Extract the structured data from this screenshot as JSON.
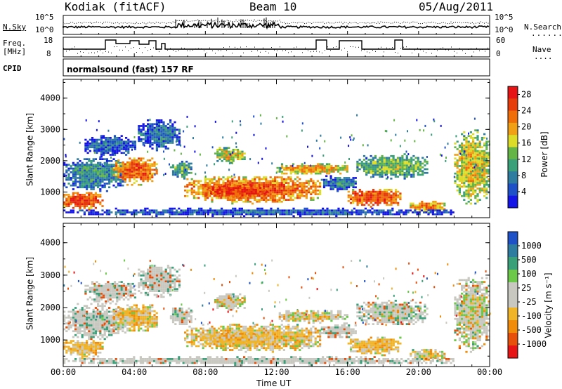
{
  "header": {
    "station": "Kodiak (fitACF)",
    "beam": "Beam 10",
    "date": "05/Aug/2011"
  },
  "labels": {
    "nsky": "N.Sky",
    "nsearch": "N.Search",
    "freq": "Freq.",
    "freq_unit": "[MHz]",
    "nave": "Nave",
    "cpid": "CPID",
    "cpid_value": "normalsound (fast) 157 RF",
    "noise_ticks_left": [
      "10^5",
      "10^0"
    ],
    "noise_ticks_right": [
      "10^5",
      "10^0"
    ],
    "freq_ticks": [
      "18",
      "8"
    ],
    "nave_ticks": [
      "60",
      "0"
    ]
  },
  "colors": {
    "power_scale": [
      "#1414e6",
      "#1e50c8",
      "#2e7ca0",
      "#3aa07a",
      "#64b446",
      "#dcdc28",
      "#f0a014",
      "#f06e0a",
      "#e63c0a",
      "#e61414"
    ],
    "velocity_scale": [
      "#1e50c8",
      "#2e7ca0",
      "#3aa07a",
      "#6cc848",
      "#c8c8c0",
      "#c8c8c0",
      "#f0b428",
      "#f08c0a",
      "#e6500a",
      "#e61414"
    ]
  },
  "chart_data": [
    {
      "type": "heatmap",
      "title": "Power",
      "xlabel": "Time UT",
      "ylabel": "Slant Range [km]",
      "x_ticks": [
        "00:00",
        "04:00",
        "08:00",
        "12:00",
        "16:00",
        "20:00",
        "00:00"
      ],
      "y_ticks": [
        1000,
        2000,
        3000,
        4000
      ],
      "ylim": [
        180,
        4600
      ],
      "colorbar": {
        "label": "Power [dB]",
        "ticks": [
          4,
          8,
          12,
          16,
          20,
          24,
          28
        ],
        "range": [
          0,
          30
        ]
      }
    },
    {
      "type": "heatmap",
      "title": "Velocity",
      "xlabel": "Time UT",
      "ylabel": "Slant Range [km]",
      "x_ticks": [
        "00:00",
        "04:00",
        "08:00",
        "12:00",
        "16:00",
        "20:00",
        "00:00"
      ],
      "y_ticks": [
        1000,
        2000,
        3000,
        4000
      ],
      "ylim": [
        180,
        4600
      ],
      "colorbar": {
        "label": "Velocity [m s⁻¹]",
        "ticks": [
          1000,
          500,
          100,
          25,
          -25,
          -100,
          -500,
          -1000
        ]
      }
    }
  ]
}
